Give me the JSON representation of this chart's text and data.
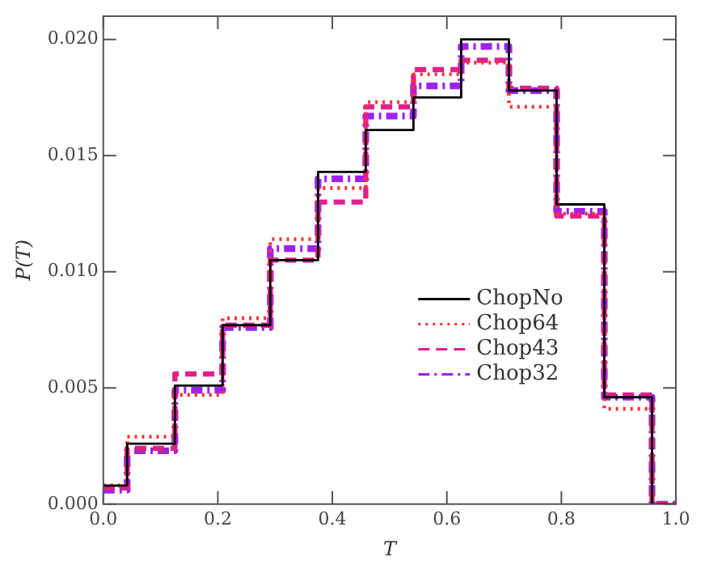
{
  "chart_data": {
    "type": "step",
    "xlabel": "T",
    "ylabel": "P(T)",
    "x": [
      0,
      0.0833,
      0.1667,
      0.25,
      0.3333,
      0.4167,
      0.5,
      0.5833,
      0.6667,
      0.75,
      0.8333,
      0.9167,
      1.0
    ],
    "series": [
      {
        "name": "ChopNo",
        "color": "#000000",
        "line_style": "solid",
        "values": [
          0.0008,
          0.0026,
          0.0051,
          0.0077,
          0.0105,
          0.0143,
          0.0161,
          0.0175,
          0.02,
          0.0178,
          0.0129,
          0.0046,
          0
        ]
      },
      {
        "name": "Chop64",
        "color": "#ff3030",
        "line_style": "dotted",
        "values": [
          0.0008,
          0.0029,
          0.0047,
          0.008,
          0.0114,
          0.0136,
          0.0173,
          0.0185,
          0.019,
          0.0171,
          0.0125,
          0.0041,
          0
        ]
      },
      {
        "name": "Chop43",
        "color": "#e0208c",
        "line_style": "dashed",
        "values": [
          0.0007,
          0.0024,
          0.0056,
          0.0077,
          0.0105,
          0.013,
          0.0171,
          0.0187,
          0.0191,
          0.0179,
          0.0124,
          0.0047,
          0
        ]
      },
      {
        "name": "Chop32",
        "color": "#a020f0",
        "line_style": "dashdot",
        "values": [
          0.0006,
          0.0023,
          0.0049,
          0.0076,
          0.011,
          0.014,
          0.0167,
          0.018,
          0.0197,
          0.0178,
          0.0126,
          0.0046,
          0
        ]
      }
    ],
    "xlim": [
      0,
      1
    ],
    "xticks": [
      {
        "value": 0,
        "label": "0.0"
      },
      {
        "value": 0.2,
        "label": "0.2"
      },
      {
        "value": 0.4,
        "label": "0.4"
      },
      {
        "value": 0.6,
        "label": "0.6"
      },
      {
        "value": 0.8,
        "label": "0.8"
      },
      {
        "value": 1,
        "label": "1.0"
      }
    ],
    "ylim": [
      0,
      0.021
    ],
    "yticks": [
      {
        "value": 0,
        "label": "0.000"
      },
      {
        "value": 0.005,
        "label": "0.005"
      },
      {
        "value": 0.01,
        "label": "0.010"
      },
      {
        "value": 0.015,
        "label": "0.015"
      },
      {
        "value": 0.02,
        "label": "0.020"
      }
    ],
    "grid": false,
    "legend": "right"
  }
}
